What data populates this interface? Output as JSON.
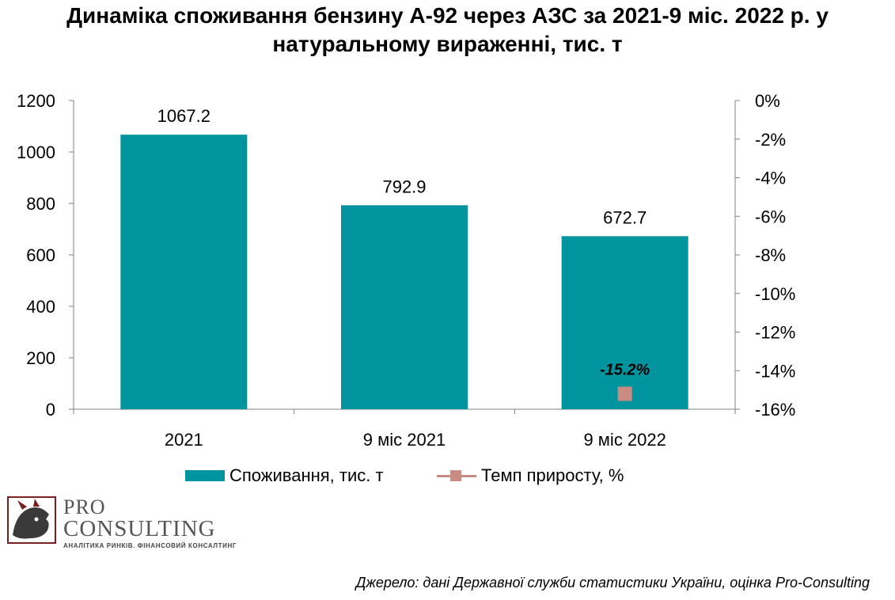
{
  "title_line1": "Динаміка споживання бензину А-92 через АЗС за 2021-9 міс. 2022 р. у",
  "title_line2": "натуральному вираженні, тис. т",
  "source": "Джерело: дані Державної служби статистики України, оцінка Pro-Consulting",
  "logo": {
    "line1": "PRO",
    "line2": "CONSULTING",
    "line3": "АНАЛІТИКА РИНКІВ. ФІНАНСОВИЙ КОНСАЛТИНГ"
  },
  "colors": {
    "bar": "#00959E",
    "line": "#C98B82",
    "axis": "#808080"
  },
  "chart_data": {
    "type": "bar",
    "categories": [
      "2021",
      "9 міс 2021",
      "9 міс 2022"
    ],
    "series": [
      {
        "name": "Споживання, тис. т",
        "type": "bar",
        "axis": "left",
        "values": [
          1067.2,
          792.9,
          672.7
        ],
        "labels": [
          "1067.2",
          "792.9",
          "672.7"
        ]
      },
      {
        "name": "Темп приросту, %",
        "type": "line",
        "axis": "right",
        "values": [
          null,
          null,
          -15.2
        ],
        "labels": [
          "",
          "",
          "-15.2%"
        ]
      }
    ],
    "left_axis": {
      "min": 0,
      "max": 1200,
      "ticks": [
        "0",
        "200",
        "400",
        "600",
        "800",
        "1000",
        "1200"
      ]
    },
    "right_axis": {
      "min": -16,
      "max": 0,
      "ticks": [
        "-16%",
        "-14%",
        "-12%",
        "-10%",
        "-8%",
        "-6%",
        "-4%",
        "-2%",
        "0%"
      ]
    },
    "legend_position": "bottom",
    "grid": false
  }
}
